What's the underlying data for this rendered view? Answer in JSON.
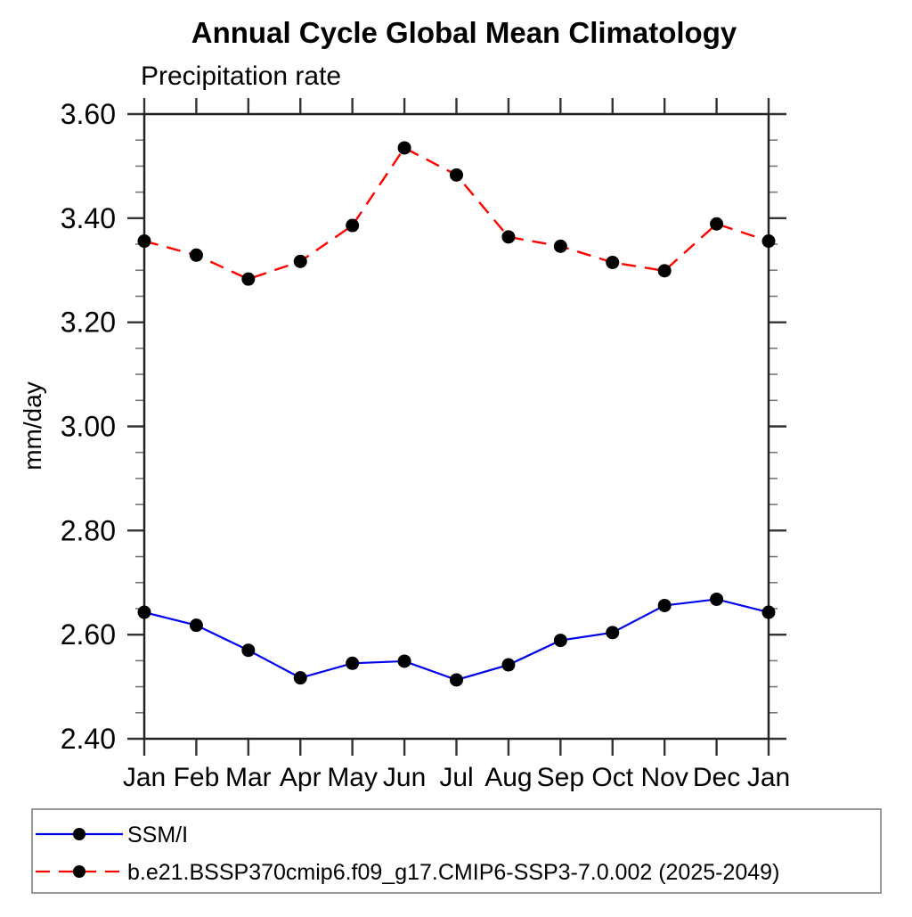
{
  "title": "Annual Cycle Global Mean Climatology",
  "subtitle": "Precipitation rate",
  "ylabel": "mm/day",
  "chart_data": {
    "type": "line",
    "categories": [
      "Jan",
      "Feb",
      "Mar",
      "Apr",
      "May",
      "Jun",
      "Jul",
      "Aug",
      "Sep",
      "Oct",
      "Nov",
      "Dec",
      "Jan"
    ],
    "series": [
      {
        "name": "SSM/I",
        "color": "#0000ee",
        "dash": "solid",
        "values": [
          2.643,
          2.618,
          2.57,
          2.517,
          2.545,
          2.549,
          2.513,
          2.542,
          2.589,
          2.604,
          2.656,
          2.668,
          2.643
        ]
      },
      {
        "name": "b.e21.BSSP370cmip6.f09_g17.CMIP6-SSP3-7.0.002 (2025-2049)",
        "color": "#ff0000",
        "dash": "dashed",
        "values": [
          3.356,
          3.329,
          3.283,
          3.317,
          3.386,
          3.535,
          3.483,
          3.364,
          3.346,
          3.315,
          3.299,
          3.389,
          3.356
        ]
      }
    ],
    "ylim": [
      2.4,
      3.6
    ],
    "ytick_major_step": 0.2,
    "ytick_minor_step": 0.05,
    "ytick_labels": [
      "2.40",
      "2.60",
      "2.80",
      "3.00",
      "3.20",
      "3.40",
      "3.60"
    ],
    "marker_color": "#000000",
    "grid": false,
    "legend_position": "bottom"
  }
}
